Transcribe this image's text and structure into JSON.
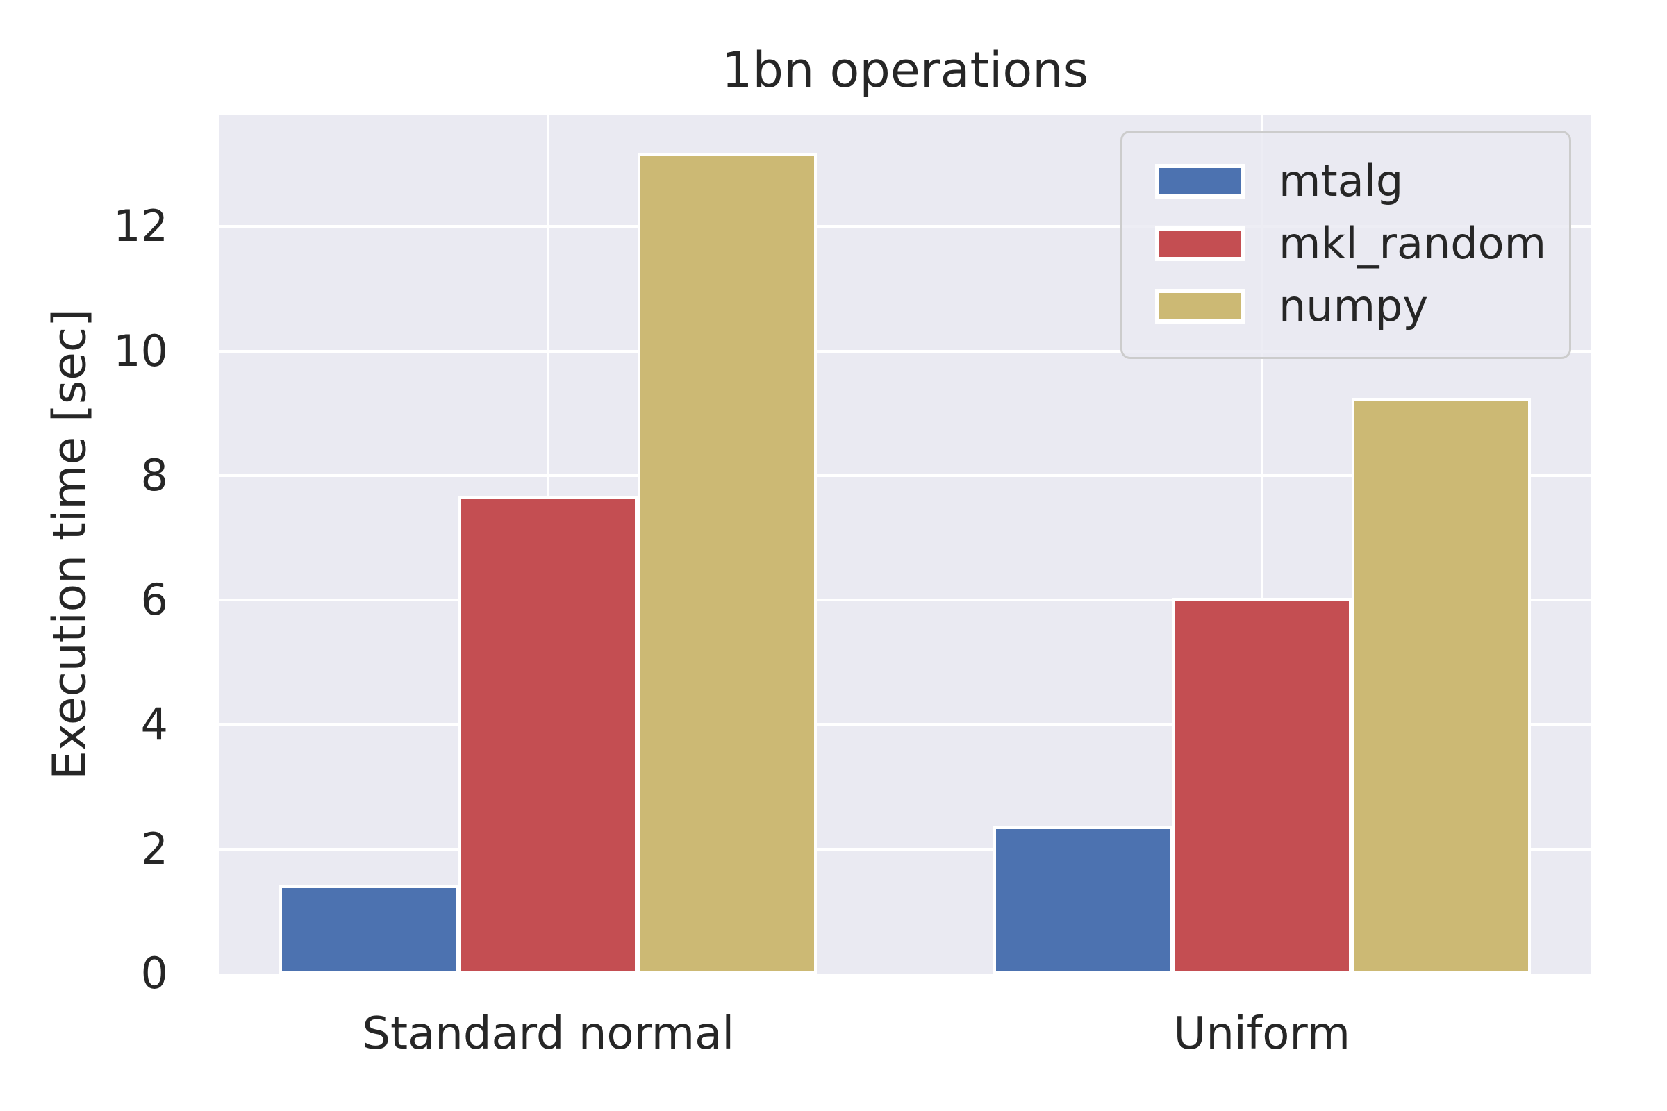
{
  "chart_data": {
    "type": "bar",
    "title": "1bn operations",
    "xlabel": "",
    "ylabel": "Execution time [sec]",
    "categories": [
      "Standard normal",
      "Uniform"
    ],
    "series": [
      {
        "name": "mtalg",
        "color": "#4C72B0",
        "values": [
          1.42,
          2.37
        ]
      },
      {
        "name": "mkl_random",
        "color": "#C44E52",
        "values": [
          7.68,
          6.03
        ]
      },
      {
        "name": "numpy",
        "color": "#CCB974",
        "values": [
          13.17,
          9.25
        ]
      }
    ],
    "ylim": [
      0,
      13.8
    ],
    "yticks": [
      0,
      2,
      4,
      6,
      8,
      10,
      12
    ],
    "grid": true,
    "legend_position": "upper right"
  },
  "colors": {
    "figure_bg": "#FFFFFF",
    "plot_bg": "#EAEAF2",
    "grid": "#FFFFFF",
    "text": "#262626",
    "bar_edge": "#FFFFFF",
    "legend_border": "#CCCCCC"
  }
}
